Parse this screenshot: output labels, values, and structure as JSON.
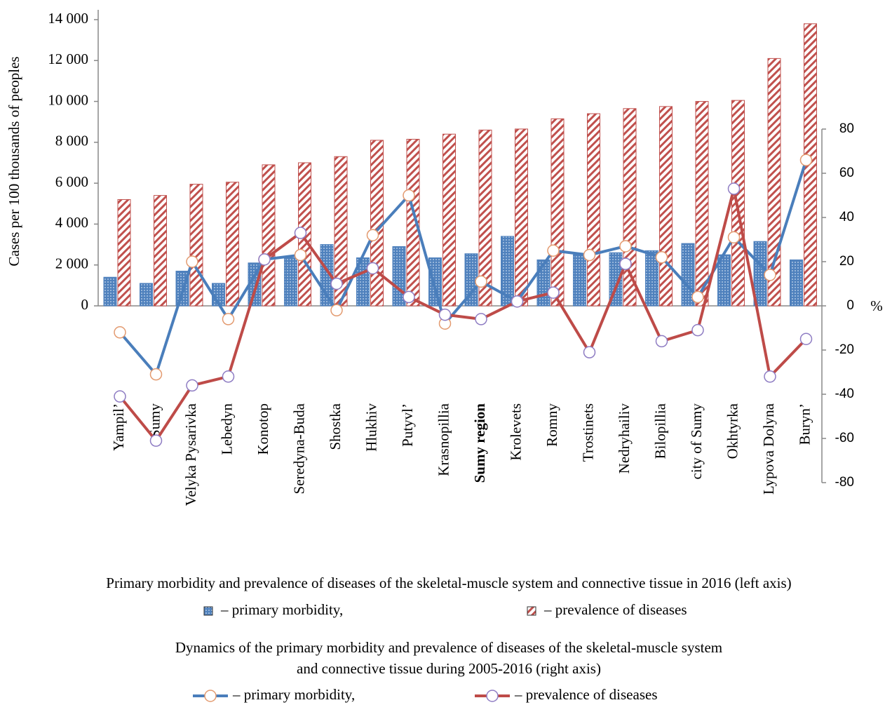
{
  "chart_data": {
    "type": "bar",
    "y_label": "Cases per 100 thousands of peoples",
    "y2_label": "%",
    "categories": [
      "Yampil’",
      "Sumy",
      "Velyka Pysarivka",
      "Lebedyn",
      "Konotop",
      "Seredyna-Buda",
      "Shostka",
      "Hlukhiv",
      "Putyvl’",
      "Krasnopillia",
      "Sumy region",
      "Krolevets",
      "Romny",
      "Trostinets",
      "Nedryhailiv",
      "Bilopillia",
      "city of Sumy",
      "Okhtyrka",
      "Lypova Dolyna",
      "Buryn’"
    ],
    "series": [
      {
        "name": "– primary morbidity,",
        "type": "bar",
        "color": "#4f81bd",
        "values": [
          1400,
          1100,
          1700,
          1100,
          2100,
          2350,
          3000,
          2350,
          2900,
          2350,
          2550,
          3400,
          2250,
          2500,
          2600,
          2700,
          3050,
          2500,
          3150,
          2250
        ]
      },
      {
        "name": "– prevalence of diseases",
        "type": "bar",
        "color": "#c0504d",
        "values": [
          5200,
          5400,
          5950,
          6050,
          6900,
          7000,
          7300,
          8100,
          8150,
          8400,
          8600,
          8650,
          9150,
          9400,
          9650,
          9750,
          10000,
          10050,
          12100,
          13800
        ]
      },
      {
        "name": "– primary morbidity,",
        "type": "line",
        "axis": "y2",
        "color": "#4a7ebb",
        "marker_color": "#e39a6f",
        "values": [
          -12,
          -31,
          20,
          -6,
          21,
          23,
          -2,
          32,
          50,
          -8,
          11,
          2,
          25,
          23,
          27,
          22,
          4,
          31,
          14,
          66
        ]
      },
      {
        "name": "– prevalence of diseases",
        "type": "line",
        "axis": "y2",
        "color": "#be4b48",
        "marker_color": "#8e7cc3",
        "values": [
          -41,
          -61,
          -36,
          -32,
          21,
          33,
          10,
          17,
          4,
          -4,
          -6,
          2,
          6,
          -21,
          19,
          -16,
          -11,
          53,
          -32,
          -15
        ]
      }
    ],
    "ylim": [
      0,
      14000
    ],
    "yticks": [
      {
        "value": 0,
        "label": "0"
      },
      {
        "value": 2000,
        "label": "2 000"
      },
      {
        "value": 4000,
        "label": "4 000"
      },
      {
        "value": 6000,
        "label": "6 000"
      },
      {
        "value": 8000,
        "label": "8 000"
      },
      {
        "value": 10000,
        "label": "10 000"
      },
      {
        "value": 12000,
        "label": "12 000"
      },
      {
        "value": 14000,
        "label": "14 000"
      }
    ],
    "y2lim": [
      -80,
      80
    ],
    "y2ticks": [
      -80,
      -60,
      -40,
      -20,
      0,
      20,
      40,
      60,
      80
    ],
    "legend_captions": [
      "Primary morbidity and prevalence of diseases of the skeletal-muscle system and connective tissue in 2016 (left axis)",
      "Dynamics of the primary morbidity and prevalence of diseases of the skeletal-muscle system",
      "and connective tissue during 2005-2016 (right axis)"
    ]
  }
}
